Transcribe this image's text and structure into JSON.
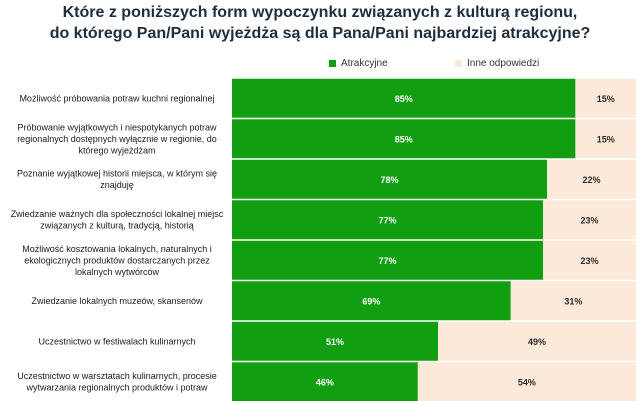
{
  "colors": {
    "atrakcyjne": "#119f11",
    "inne": "#fde9d9",
    "label_dark": "#2b2b2b",
    "label_light": "#ffffff"
  },
  "chart_data": {
    "type": "bar",
    "orientation": "horizontal",
    "stacked": true,
    "title": {
      "line1": "Które z poniższych form wypoczynku związanych z kulturą regionu,",
      "line2": "do którego Pan/Pani wyjeżdża są  dla  Pana/Pani najbardziej atrakcyjne?"
    },
    "legend_position": "top",
    "xlim": [
      0,
      100
    ],
    "grid": false,
    "categories": [
      [
        "Możliwość próbowania potraw kuchni regionalnej"
      ],
      [
        "Próbowanie wyjątkowych i niespotykanych potraw",
        "regionalnych dostępnych wyłącznie w regionie, do",
        "którego wyjeżdżam"
      ],
      [
        "Poznanie wyjątkowej historii miejsca, w którym się",
        "znajduję"
      ],
      [
        "Zwiedzanie ważnych dla społeczności lokalnej miejsc",
        "związanych z kulturą, tradycją, historią"
      ],
      [
        "Możliwość kosztowania lokalnych, naturalnych i",
        "ekologicznych produktów dostarczanych przez",
        "lokalnych wytwórców"
      ],
      [
        "Zwiedzanie lokalnych muzeów, skansenów"
      ],
      [
        "Uczestnictwo w festiwalach kulinarnych"
      ],
      [
        "Uczestnictwo w warsztatach kulinarnych, procesie",
        "wytwarzania regionalnych produktów i potraw"
      ]
    ],
    "series": [
      {
        "name": "Atrakcyjne",
        "values": [
          85,
          85,
          78,
          77,
          77,
          69,
          51,
          46
        ],
        "labels": [
          "85%",
          "85%",
          "78%",
          "77%",
          "77%",
          "69%",
          "51%",
          "46%"
        ]
      },
      {
        "name": "Inne odpowiedzi",
        "values": [
          15,
          15,
          22,
          23,
          23,
          31,
          49,
          54
        ],
        "labels": [
          "15%",
          "15%",
          "22%",
          "23%",
          "23%",
          "31%",
          "49%",
          "54%"
        ]
      }
    ]
  }
}
